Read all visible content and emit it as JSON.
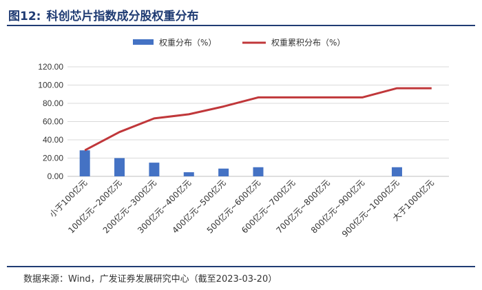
{
  "header": {
    "figure_number": "图12:",
    "title": "科创芯片指数成分股权重分布"
  },
  "chart_data": {
    "type": "bar",
    "categories": [
      "小于100亿元",
      "100亿元~200亿元",
      "200亿元~300亿元",
      "300亿元~400亿元",
      "400亿元~500亿元",
      "500亿元~600亿元",
      "600亿元~700亿元",
      "700亿元~800亿元",
      "800亿元~900亿元",
      "900亿元~1000亿元",
      "大于1000亿元"
    ],
    "series": [
      {
        "name": "权重分布（%）",
        "type": "bar",
        "color": "#4472c4",
        "values": [
          28.5,
          20.0,
          15.0,
          4.5,
          8.5,
          10.0,
          0,
          0,
          0,
          10.0,
          0
        ]
      },
      {
        "name": "权重累积分布（%）",
        "type": "line",
        "color": "#c0373a",
        "values": [
          28.5,
          48.5,
          63.5,
          68.0,
          76.5,
          86.5,
          86.5,
          86.5,
          86.5,
          96.5,
          96.5
        ]
      }
    ],
    "yticks": [
      "0.00",
      "20.00",
      "40.00",
      "60.00",
      "80.00",
      "100.00",
      "120.00"
    ],
    "ylim": [
      0,
      120
    ],
    "grid": true,
    "legend": "top-center"
  },
  "footer": {
    "source": "数据来源：Wind，广发证券发展研究中心（截至2023-03-20）"
  }
}
